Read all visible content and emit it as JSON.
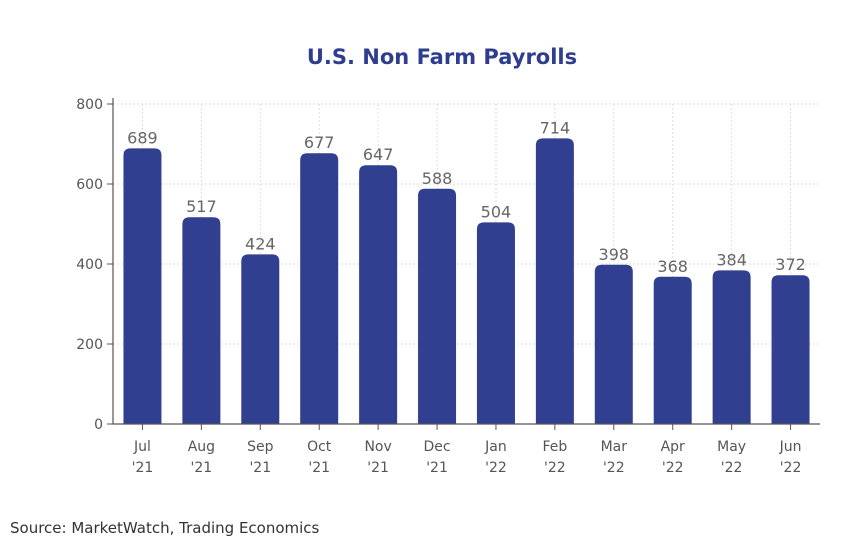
{
  "chart_data": {
    "type": "bar",
    "title": "U.S. Non Farm Payrolls",
    "xlabel": "",
    "ylabel": "",
    "categories": [
      [
        "Jul",
        "'21"
      ],
      [
        "Aug",
        "'21"
      ],
      [
        "Sep",
        "'21"
      ],
      [
        "Oct",
        "'21"
      ],
      [
        "Nov",
        "'21"
      ],
      [
        "Dec",
        "'21"
      ],
      [
        "Jan",
        "'22"
      ],
      [
        "Feb",
        "'22"
      ],
      [
        "Mar",
        "'22"
      ],
      [
        "Apr",
        "'22"
      ],
      [
        "May",
        "'22"
      ],
      [
        "Jun",
        "'22"
      ]
    ],
    "values": [
      689,
      517,
      424,
      677,
      647,
      588,
      504,
      714,
      398,
      368,
      384,
      372
    ],
    "ylim": [
      0,
      800
    ],
    "yticks": [
      0,
      200,
      400,
      600,
      800
    ],
    "bar_color": "#303f8f",
    "grid": true,
    "data_labels": true
  },
  "source": "Source: MarketWatch, Trading Economics"
}
